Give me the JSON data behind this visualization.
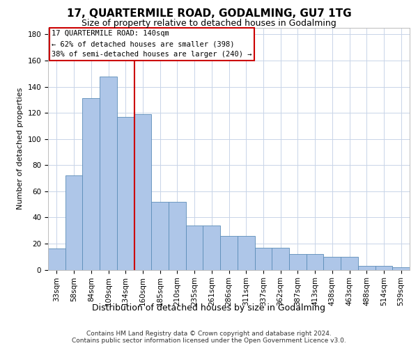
{
  "title": "17, QUARTERMILE ROAD, GODALMING, GU7 1TG",
  "subtitle": "Size of property relative to detached houses in Godalming",
  "xlabel": "Distribution of detached houses by size in Godalming",
  "ylabel": "Number of detached properties",
  "categories": [
    "33sqm",
    "58sqm",
    "84sqm",
    "109sqm",
    "134sqm",
    "160sqm",
    "185sqm",
    "210sqm",
    "235sqm",
    "261sqm",
    "286sqm",
    "311sqm",
    "337sqm",
    "362sqm",
    "387sqm",
    "413sqm",
    "438sqm",
    "463sqm",
    "488sqm",
    "514sqm",
    "539sqm"
  ],
  "hist_values": [
    16,
    72,
    131,
    148,
    117,
    119,
    52,
    52,
    34,
    34,
    26,
    26,
    17,
    17,
    12,
    12,
    10,
    10,
    3,
    3,
    2
  ],
  "bar_color": "#aec6e8",
  "bar_edge_color": "#5b8db8",
  "vline_color": "#cc0000",
  "vline_pos": 4.5,
  "annotation_title": "17 QUARTERMILE ROAD: 140sqm",
  "annotation_line1": "← 62% of detached houses are smaller (398)",
  "annotation_line2": "38% of semi-detached houses are larger (240) →",
  "annotation_box_color": "#ffffff",
  "annotation_border_color": "#cc0000",
  "ylim": [
    0,
    185
  ],
  "yticks": [
    0,
    20,
    40,
    60,
    80,
    100,
    120,
    140,
    160,
    180
  ],
  "footer1": "Contains HM Land Registry data © Crown copyright and database right 2024.",
  "footer2": "Contains public sector information licensed under the Open Government Licence v3.0.",
  "bg_color": "#ffffff",
  "plot_bg_color": "#ffffff",
  "grid_color": "#c8d4e8",
  "title_fontsize": 11,
  "subtitle_fontsize": 9,
  "ylabel_fontsize": 8,
  "xlabel_fontsize": 9,
  "tick_fontsize": 7.5,
  "footer_fontsize": 6.5
}
